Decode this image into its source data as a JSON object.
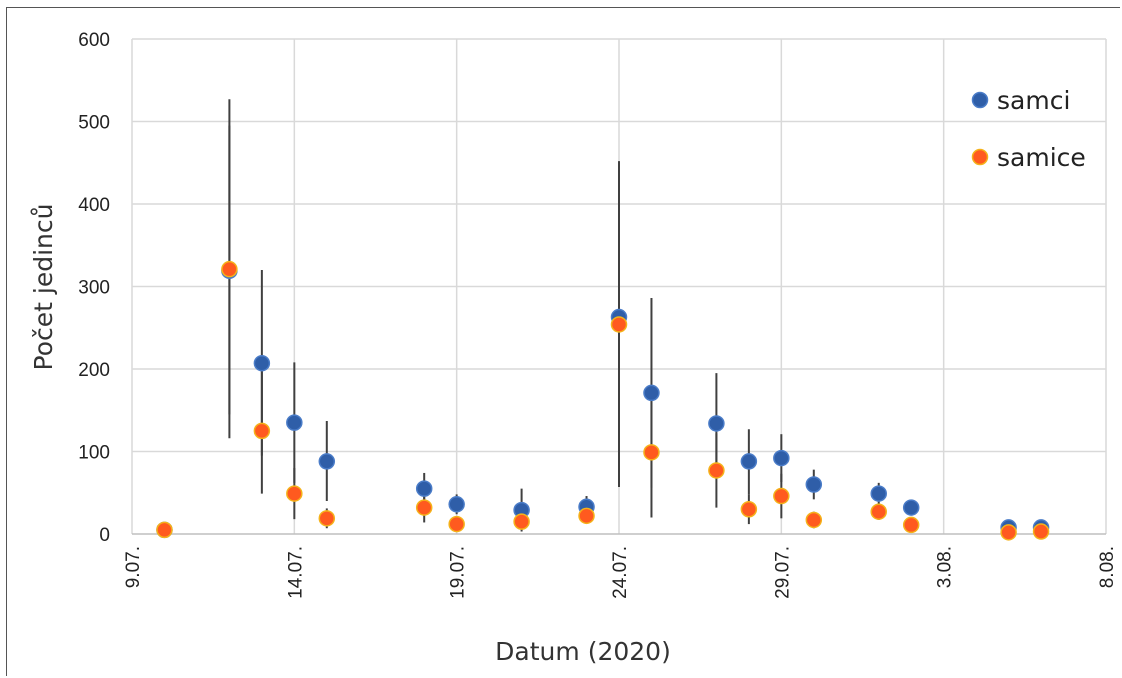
{
  "chart_data": {
    "type": "scatter",
    "title": "",
    "xlabel": "Datum (2020)",
    "ylabel": "Počet jedinců",
    "x_tick_labels": [
      "9.07.",
      "14.07.",
      "19.07.",
      "24.07.",
      "29.07.",
      "3.08.",
      "8.08."
    ],
    "x_ticks_day_of_july": [
      9,
      14,
      19,
      24,
      29,
      34,
      39
    ],
    "xlim_day_of_july": [
      9,
      39
    ],
    "ylim": [
      0,
      600
    ],
    "y_ticks": [
      0,
      100,
      200,
      300,
      400,
      500,
      600
    ],
    "grid": true,
    "legend_position": "top-right",
    "colors": {
      "samci": "#2f5ea8",
      "samice": "#ff5a1f",
      "samice_edge": "#f5b21a",
      "error_bars": "#404040",
      "grid": "#d9d9d9"
    },
    "series": [
      {
        "name": "samci",
        "points": [
          {
            "x": "10.07.",
            "y": 5
          },
          {
            "x": "12.07.",
            "y": 319,
            "err_low": 145,
            "err_high": 495
          },
          {
            "x": "13.07.",
            "y": 207,
            "err_low": 95,
            "err_high": 320
          },
          {
            "x": "14.07.",
            "y": 135,
            "err_low": 62,
            "err_high": 208
          },
          {
            "x": "15.07.",
            "y": 88,
            "err_low": 40,
            "err_high": 137
          },
          {
            "x": "18.07.",
            "y": 55,
            "err_low": 36,
            "err_high": 74
          },
          {
            "x": "19.07.",
            "y": 36,
            "err_low": 24,
            "err_high": 48
          },
          {
            "x": "21.07.",
            "y": 29,
            "err_low": 3,
            "err_high": 55
          },
          {
            "x": "23.07.",
            "y": 33,
            "err_low": 20,
            "err_high": 46
          },
          {
            "x": "24.07.",
            "y": 263,
            "err_low": 73,
            "err_high": 452
          },
          {
            "x": "25.07.",
            "y": 171,
            "err_low": 56,
            "err_high": 286
          },
          {
            "x": "27.07.",
            "y": 134,
            "err_low": 73,
            "err_high": 195
          },
          {
            "x": "28.07.",
            "y": 88,
            "err_low": 48,
            "err_high": 127
          },
          {
            "x": "29.07.",
            "y": 92,
            "err_low": 63,
            "err_high": 121
          },
          {
            "x": "30.07.",
            "y": 60,
            "err_low": 42,
            "err_high": 78
          },
          {
            "x": "1.08.",
            "y": 49,
            "err_low": 36,
            "err_high": 62
          },
          {
            "x": "2.08.",
            "y": 32
          },
          {
            "x": "5.08.",
            "y": 8
          },
          {
            "x": "6.08.",
            "y": 8
          }
        ]
      },
      {
        "name": "samice",
        "points": [
          {
            "x": "10.07.",
            "y": 5
          },
          {
            "x": "12.07.",
            "y": 321,
            "err_low": 116,
            "err_high": 527
          },
          {
            "x": "13.07.",
            "y": 125,
            "err_low": 49,
            "err_high": 200
          },
          {
            "x": "14.07.",
            "y": 49,
            "err_low": 18,
            "err_high": 80
          },
          {
            "x": "15.07.",
            "y": 19,
            "err_low": 7,
            "err_high": 31
          },
          {
            "x": "18.07.",
            "y": 32,
            "err_low": 14,
            "err_high": 50
          },
          {
            "x": "19.07.",
            "y": 12,
            "err_low": 8,
            "err_high": 17
          },
          {
            "x": "21.07.",
            "y": 15,
            "err_low": 7,
            "err_high": 24
          },
          {
            "x": "23.07.",
            "y": 22,
            "err_low": 14,
            "err_high": 30
          },
          {
            "x": "24.07.",
            "y": 254,
            "err_low": 57,
            "err_high": 451
          },
          {
            "x": "25.07.",
            "y": 99,
            "err_low": 20,
            "err_high": 179
          },
          {
            "x": "27.07.",
            "y": 77,
            "err_low": 32,
            "err_high": 122
          },
          {
            "x": "28.07.",
            "y": 30,
            "err_low": 12,
            "err_high": 48
          },
          {
            "x": "29.07.",
            "y": 46,
            "err_low": 19,
            "err_high": 73
          },
          {
            "x": "30.07.",
            "y": 17,
            "err_low": 7,
            "err_high": 27
          },
          {
            "x": "1.08.",
            "y": 27,
            "err_low": 17,
            "err_high": 37
          },
          {
            "x": "2.08.",
            "y": 11,
            "err_low": 7,
            "err_high": 15
          },
          {
            "x": "5.08.",
            "y": 2
          },
          {
            "x": "6.08.",
            "y": 3
          }
        ]
      }
    ]
  }
}
